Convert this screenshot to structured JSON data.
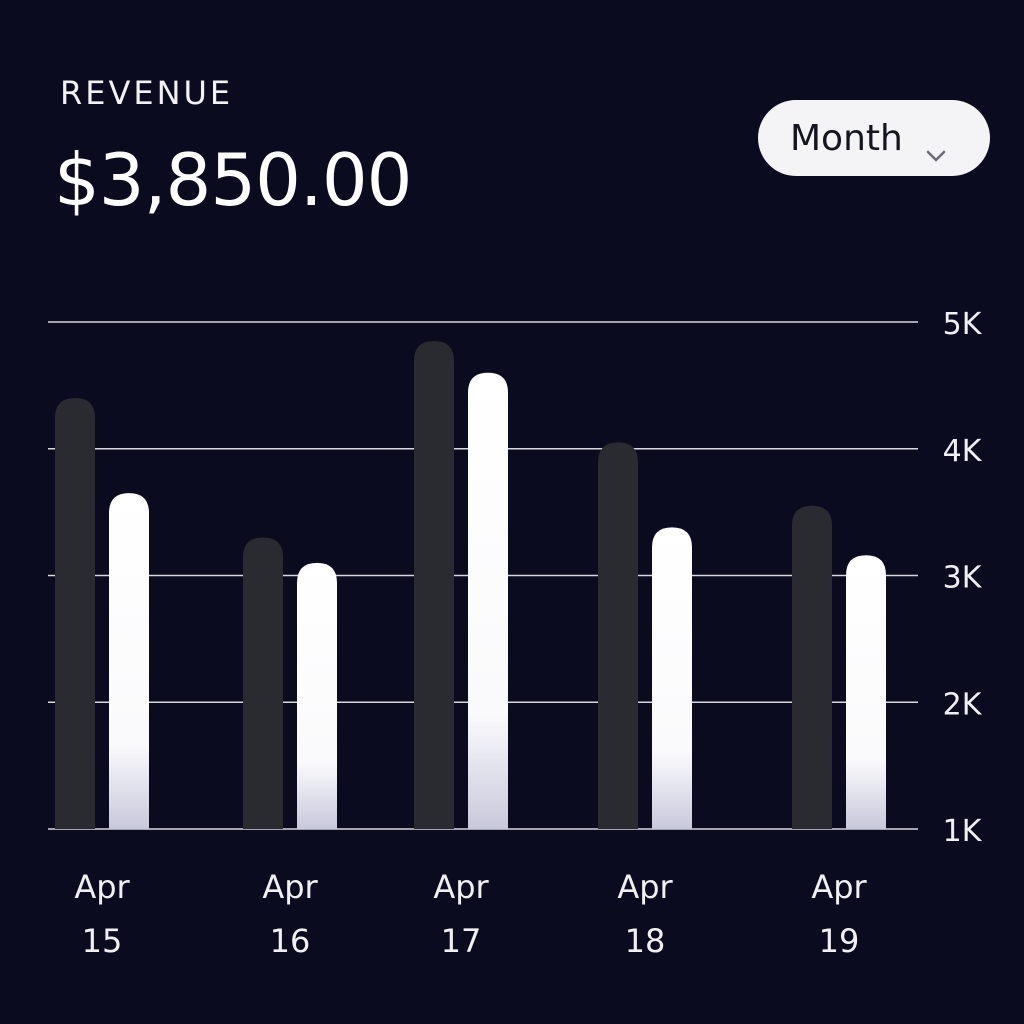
{
  "header": {
    "label": "REVENUE",
    "amount": "$3,850.00"
  },
  "period_select": {
    "value": "Month"
  },
  "icons": {
    "period_chevron": "chevron-down-icon"
  },
  "colors": {
    "background": "#0b0b1f",
    "bar_dark": "#2a2b30",
    "bar_light": "#ffffff",
    "gridline": "#d8d8e0"
  },
  "chart_data": {
    "type": "bar",
    "categories": [
      "Apr 15",
      "Apr 16",
      "Apr 17",
      "Apr 18",
      "Apr 19"
    ],
    "category_lines": [
      [
        "Apr",
        "15"
      ],
      [
        "Apr",
        "16"
      ],
      [
        "Apr",
        "17"
      ],
      [
        "Apr",
        "18"
      ],
      [
        "Apr",
        "19"
      ]
    ],
    "series": [
      {
        "values": [
          4.4,
          3.3,
          4.85,
          4.05,
          3.55
        ],
        "color": "#2a2b30"
      },
      {
        "values": [
          3.65,
          3.1,
          4.6,
          3.38,
          3.16
        ],
        "color": "#ffffff"
      }
    ],
    "ylim": [
      1,
      5
    ],
    "yticks": [
      "1K",
      "2K",
      "3K",
      "4K",
      "5K"
    ],
    "ytick_values": [
      1,
      2,
      3,
      4,
      5
    ],
    "grid": true,
    "axis_position": "right"
  }
}
